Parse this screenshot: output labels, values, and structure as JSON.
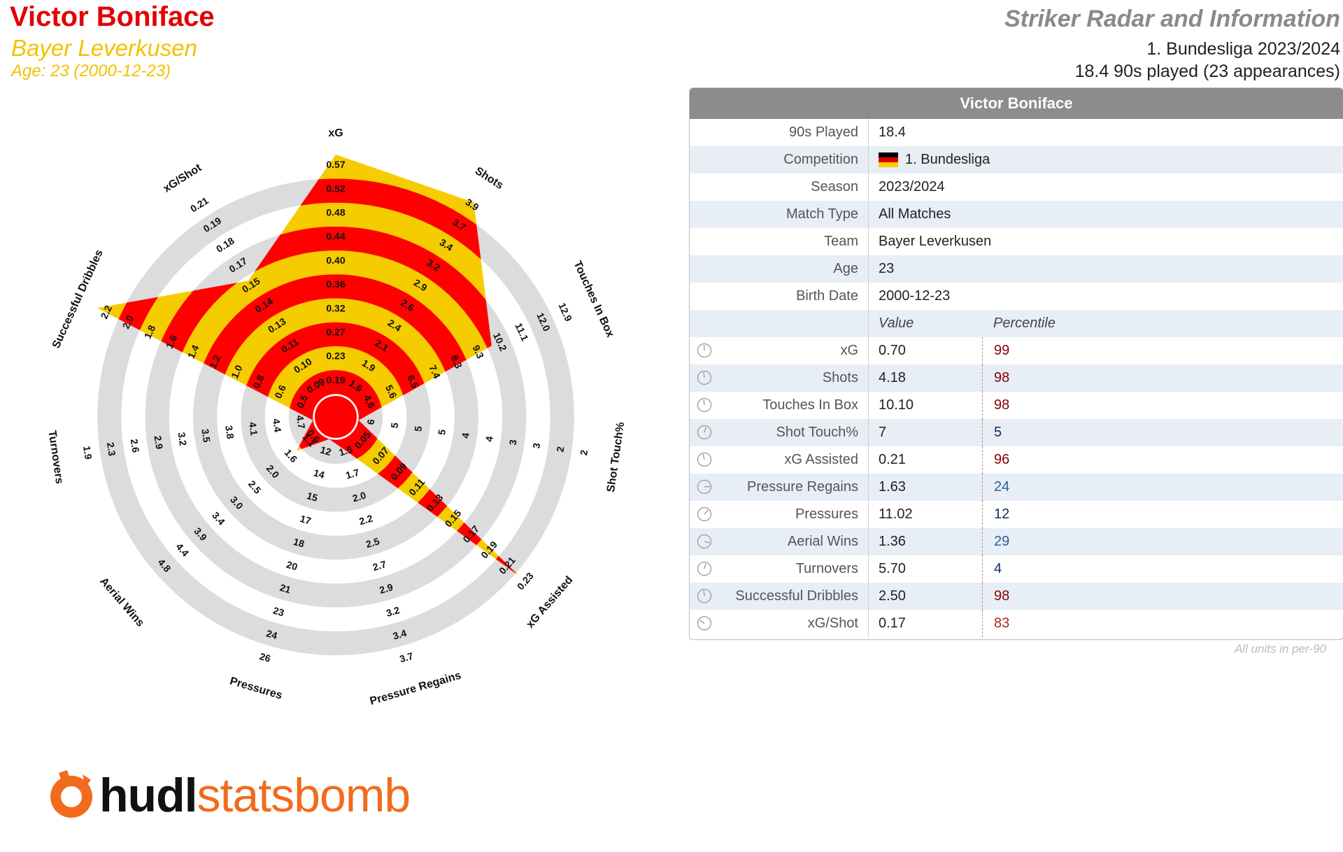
{
  "header": {
    "player_name": "Victor Boniface",
    "team": "Bayer Leverkusen",
    "age_line": "Age: 23 (2000-12-23)",
    "title": "Striker Radar and Information",
    "competition_line": "1. Bundesliga 2023/2024",
    "played_line": "18.4 90s played (23 appearances)"
  },
  "colors": {
    "red": "#ff0000",
    "yellow": "#f5cc00",
    "ring_grey": "#dcdcdc",
    "header_grey": "#8c8c8c"
  },
  "info_table": {
    "title": "Victor Boniface",
    "rows": [
      {
        "label": "90s Played",
        "value": "18.4"
      },
      {
        "label": "Competition",
        "value": "1. Bundesliga",
        "flag": "germany-flag-icon"
      },
      {
        "label": "Season",
        "value": "2023/2024"
      },
      {
        "label": "Match Type",
        "value": "All Matches"
      },
      {
        "label": "Team",
        "value": "Bayer Leverkusen"
      },
      {
        "label": "Age",
        "value": "23"
      },
      {
        "label": "Birth Date",
        "value": "2000-12-23"
      }
    ],
    "value_header": "Value",
    "percentile_header": "Percentile",
    "metrics": [
      {
        "label": "xG",
        "value": "0.70",
        "percentile": "99",
        "color": "#8b0000"
      },
      {
        "label": "Shots",
        "value": "4.18",
        "percentile": "98",
        "color": "#8b0000"
      },
      {
        "label": "Touches In Box",
        "value": "10.10",
        "percentile": "98",
        "color": "#8b0000"
      },
      {
        "label": "Shot Touch%",
        "value": "7",
        "percentile": "5",
        "color": "#1a2a6c"
      },
      {
        "label": "xG Assisted",
        "value": "0.21",
        "percentile": "96",
        "color": "#8b0000"
      },
      {
        "label": "Pressure Regains",
        "value": "1.63",
        "percentile": "24",
        "color": "#2c5f9e"
      },
      {
        "label": "Pressures",
        "value": "11.02",
        "percentile": "12",
        "color": "#1a2a6c"
      },
      {
        "label": "Aerial Wins",
        "value": "1.36",
        "percentile": "29",
        "color": "#2c5f9e"
      },
      {
        "label": "Turnovers",
        "value": "5.70",
        "percentile": "4",
        "color": "#1a2a6c"
      },
      {
        "label": "Successful Dribbles",
        "value": "2.50",
        "percentile": "98",
        "color": "#8b0000"
      },
      {
        "label": "xG/Shot",
        "value": "0.17",
        "percentile": "83",
        "color": "#b22222"
      }
    ],
    "units_note": "All units in per-90"
  },
  "chart_data": {
    "type": "radar",
    "axes": [
      {
        "name": "xG",
        "ticks": [
          "0.19",
          "0.23",
          "0.27",
          "0.32",
          "0.36",
          "0.40",
          "0.44",
          "0.48",
          "0.52",
          "0.57"
        ],
        "value_fraction": 1.0
      },
      {
        "name": "Shots",
        "ticks": [
          "1.6",
          "1.9",
          "2.1",
          "2.4",
          "2.6",
          "2.9",
          "3.2",
          "3.4",
          "3.7",
          "3.9"
        ],
        "value_fraction": 0.97
      },
      {
        "name": "Touches In Box",
        "ticks": [
          "4.6",
          "5.6",
          "6.5",
          "7.4",
          "8.3",
          "9.3",
          "10.2",
          "11.1",
          "12.0",
          "12.9"
        ],
        "value_fraction": 0.62
      },
      {
        "name": "Shot Touch%",
        "ticks": [
          "6",
          "5",
          "5",
          "5",
          "4",
          "4",
          "3",
          "3",
          "2",
          "2"
        ],
        "value_fraction": 0.0
      },
      {
        "name": "xG Assisted",
        "ticks": [
          "0.05",
          "0.07",
          "0.09",
          "0.11",
          "0.13",
          "0.15",
          "0.17",
          "0.19",
          "0.21",
          "0.23"
        ],
        "value_fraction": 0.92
      },
      {
        "name": "Pressure Regains",
        "ticks": [
          "1.5",
          "1.7",
          "2.0",
          "2.2",
          "2.5",
          "2.7",
          "2.9",
          "3.2",
          "3.4",
          "3.7"
        ],
        "value_fraction": 0.05
      },
      {
        "name": "Pressures",
        "ticks": [
          "12",
          "14",
          "15",
          "17",
          "18",
          "20",
          "21",
          "23",
          "24",
          "26"
        ],
        "value_fraction": 0.0
      },
      {
        "name": "Aerial Wins",
        "ticks": [
          "1.1",
          "1.6",
          "2.0",
          "2.5",
          "3.0",
          "3.4",
          "3.9",
          "4.4",
          "4.8",
          ""
        ],
        "value_fraction": 0.12
      },
      {
        "name": "Turnovers",
        "ticks": [
          "4.7",
          "4.4",
          "4.1",
          "3.8",
          "3.5",
          "3.2",
          "2.9",
          "2.6",
          "2.3",
          "1.9"
        ],
        "value_fraction": 0.0
      },
      {
        "name": "Successful Dribbles",
        "ticks": [
          "0.5",
          "0.6",
          "0.8",
          "1.0",
          "1.2",
          "1.4",
          "1.6",
          "1.8",
          "2.0",
          "2.2"
        ],
        "value_fraction": 1.0
      },
      {
        "name": "xG/Shot",
        "ticks": [
          "0.09",
          "0.10",
          "0.11",
          "0.13",
          "0.14",
          "0.15",
          "0.17",
          "0.18",
          "0.19",
          "0.21"
        ],
        "value_fraction": 0.58
      }
    ],
    "extra_ticks": {
      "Aerial Wins_inner": "0.6"
    },
    "grid": true
  },
  "logo": {
    "part_a": "hudl",
    "part_b": "statsbomb"
  }
}
